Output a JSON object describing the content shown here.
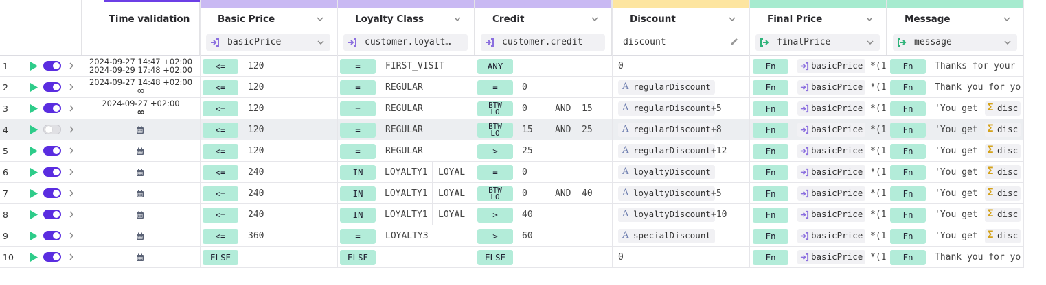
{
  "columns": {
    "time": {
      "title": "Time validation"
    },
    "basic": {
      "title": "Basic Price",
      "field": "basicPrice",
      "strip": "#c9b9f3"
    },
    "loyalty": {
      "title": "Loyalty Class",
      "field": "customer.loyalt…",
      "strip": "#c9b9f3"
    },
    "credit": {
      "title": "Credit",
      "field": "customer.credit",
      "strip": "#c9b9f3"
    },
    "discount": {
      "title": "Discount",
      "field": "discount",
      "strip": "#fde5a0"
    },
    "final": {
      "title": "Final Price",
      "field": "finalPrice",
      "strip": "#a6ebcf"
    },
    "message": {
      "title": "Message",
      "field": "message",
      "strip": "#a6ebcf"
    }
  },
  "colors": {
    "accent": "#5a2de0",
    "play": "#2ecc8a",
    "chip": "#b3ecd9",
    "input_icon": "#8b6fdf",
    "output_icon": "#2fb37a",
    "highlight": "#eceef1"
  },
  "fn_label": "Fn",
  "sigma_label": "disc",
  "rows": [
    {
      "num": "1",
      "enabled": true,
      "time": [
        "2024-09-27 14:47 +02:00",
        "2024-09-29 17:48 +02:00"
      ],
      "basic_op": "<=",
      "basic_val": "120",
      "loy_op": "=",
      "loy_val": "FIRST_VISIT",
      "cred_op": "ANY",
      "disc_plain": "0",
      "final_tail": "*(1",
      "message": "Thanks for your"
    },
    {
      "num": "2",
      "enabled": true,
      "time": [
        "2024-09-27 14:48 +02:00"
      ],
      "time_inf": "∞",
      "basic_op": "<=",
      "basic_val": "120",
      "loy_op": "=",
      "loy_val": "REGULAR",
      "cred_op": "=",
      "cred_val": "0",
      "disc_var": "regularDiscount",
      "final_tail": "*(1",
      "message": "Thank you for yo"
    },
    {
      "num": "3",
      "enabled": true,
      "time": [
        "2024-09-27 +02:00"
      ],
      "time_inf": "∞",
      "basic_op": "<=",
      "basic_val": "120",
      "loy_op": "=",
      "loy_val": "REGULAR",
      "cred_op": [
        "BTW",
        "LO"
      ],
      "cred_val": "0",
      "cred_and": "AND",
      "cred_val2": "15",
      "disc_var": "regularDiscount",
      "disc_plus": "+5",
      "final_tail": "*(1",
      "message": "'You get"
    },
    {
      "num": "4",
      "enabled": false,
      "highlight": true,
      "cal": true,
      "basic_op": "<=",
      "basic_val": "120",
      "loy_op": "=",
      "loy_val": "REGULAR",
      "cred_op": [
        "BTW",
        "LO"
      ],
      "cred_val": "15",
      "cred_and": "AND",
      "cred_val2": "25",
      "disc_var": "regularDiscount",
      "disc_plus": "+8",
      "final_tail": "*(1",
      "message": "'You get"
    },
    {
      "num": "5",
      "enabled": true,
      "cal": true,
      "basic_op": "<=",
      "basic_val": "120",
      "loy_op": "=",
      "loy_val": "REGULAR",
      "cred_op": ">",
      "cred_val": "25",
      "disc_var": "regularDiscount",
      "disc_plus": "+12",
      "final_tail": "*(1",
      "message": "'You get"
    },
    {
      "num": "6",
      "enabled": true,
      "cal": true,
      "basic_op": "<=",
      "basic_val": "240",
      "loy_op": "IN",
      "loy_val": "LOYALTY1",
      "loy_val2": "LOYAL",
      "cred_op": "=",
      "cred_val": "0",
      "disc_var": "loyaltyDiscount",
      "final_tail": "*(1",
      "message": "'You get"
    },
    {
      "num": "7",
      "enabled": true,
      "cal": true,
      "basic_op": "<=",
      "basic_val": "240",
      "loy_op": "IN",
      "loy_val": "LOYALTY1",
      "loy_val2": "LOYAL",
      "cred_op": [
        "BTW",
        "LO"
      ],
      "cred_val": "0",
      "cred_and": "AND",
      "cred_val2": "40",
      "disc_var": "loyaltyDiscount",
      "disc_plus": "+5",
      "final_tail": "*(1",
      "message": "'You get"
    },
    {
      "num": "8",
      "enabled": true,
      "cal": true,
      "basic_op": "<=",
      "basic_val": "240",
      "loy_op": "IN",
      "loy_val": "LOYALTY1",
      "loy_val2": "LOYAL",
      "cred_op": ">",
      "cred_val": "40",
      "disc_var": "loyaltyDiscount",
      "disc_plus": "+10",
      "final_tail": "*(1",
      "message": "'You get"
    },
    {
      "num": "9",
      "enabled": true,
      "cal": true,
      "basic_op": "<=",
      "basic_val": "360",
      "loy_op": "=",
      "loy_val": "LOYALTY3",
      "cred_op": ">",
      "cred_val": "60",
      "disc_var": "specialDiscount",
      "final_tail": "*(1",
      "message": "'You get"
    },
    {
      "num": "10",
      "enabled": true,
      "cal": true,
      "basic_op": "ELSE",
      "loy_op": "ELSE",
      "cred_op": "ELSE",
      "disc_plain": "0",
      "final_tail": "*(1",
      "message": "Thank you for yo"
    }
  ]
}
